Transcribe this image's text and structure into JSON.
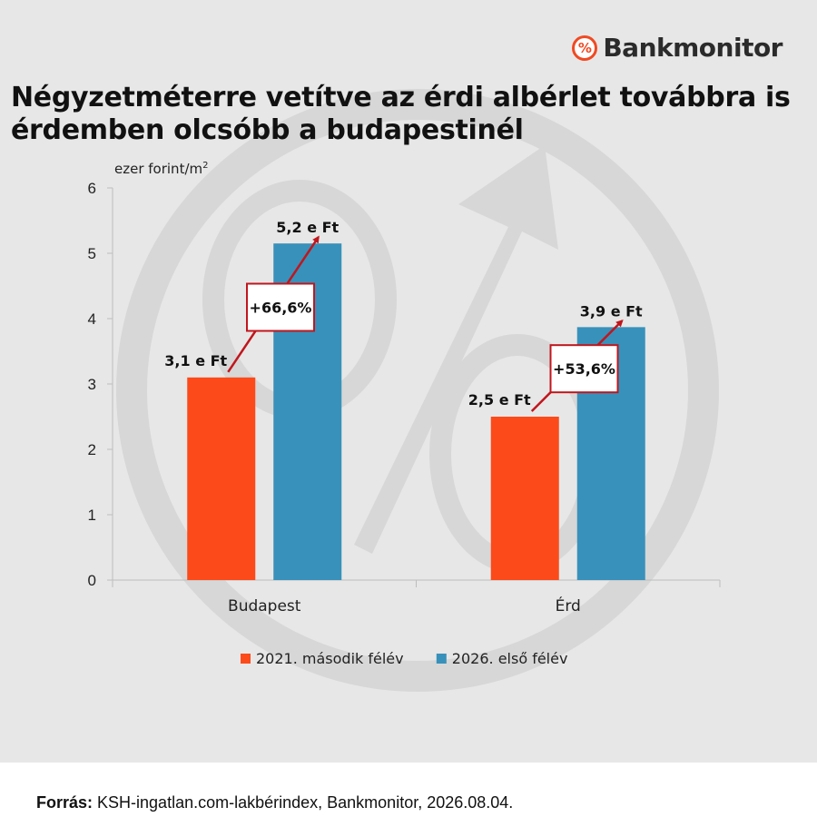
{
  "brand": {
    "icon": "percent-icon",
    "icon_glyph": "%",
    "name": "Bankmonitor",
    "accent": "#f04a23"
  },
  "title": "Négyzetméterre vetítve az érdi albérlet továbbra is érdemben olcsóbb a budapestinél",
  "footer": {
    "label": "Forrás:",
    "text": "KSH-ingatlan.com-lakbérindex, Bankmonitor, 2026.08.04."
  },
  "chart_data": {
    "type": "bar",
    "title": "Négyzetméterre vetítve az érdi albérlet továbbra is érdemben olcsóbb a budapestinél",
    "ylabel": "ezer forint/m",
    "ylabel_sup": "2",
    "xlabel": "",
    "ylim": [
      0,
      6
    ],
    "yticks": [
      "0",
      "1",
      "2",
      "3",
      "4",
      "5",
      "6"
    ],
    "categories": [
      "Budapest",
      "Érd"
    ],
    "series": [
      {
        "name": "2021. második félév",
        "color": "#fc4a1a",
        "values": [
          3.1,
          2.5
        ],
        "labels": [
          "3,1 e Ft",
          "2,5 e Ft"
        ]
      },
      {
        "name": "2026. első félév",
        "color": "#3891bb",
        "values": [
          5.15,
          3.87
        ],
        "labels": [
          "5,2 e Ft",
          "3,9 e Ft"
        ]
      }
    ],
    "annotations": [
      {
        "category": "Budapest",
        "text": "+66,6%"
      },
      {
        "category": "Érd",
        "text": "+53,6%"
      }
    ],
    "arrow_color": "#c0161d",
    "legend": "bottom",
    "grid": false
  }
}
